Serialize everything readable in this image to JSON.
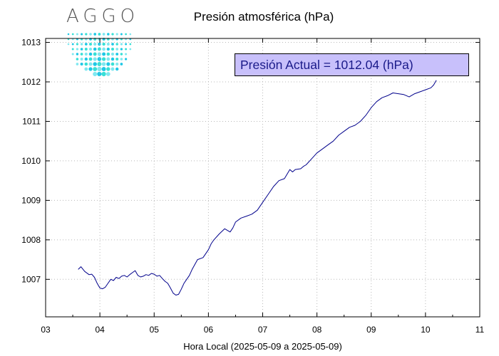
{
  "chart_data": {
    "type": "line",
    "title": "Presión atmosférica (hPa)",
    "xlabel": "Hora Local (2025-05-09 a 2025-05-09)",
    "ylabel": "",
    "xlim": [
      3,
      11
    ],
    "ylim": [
      1006.05,
      1013.1
    ],
    "x_ticks": [
      "03",
      "04",
      "05",
      "06",
      "07",
      "08",
      "09",
      "10",
      "11"
    ],
    "y_ticks": [
      "1007",
      "1008",
      "1009",
      "1010",
      "1011",
      "1012",
      "1013"
    ],
    "grid": true,
    "line_color": "#00008b",
    "x": [
      3.6,
      3.65,
      3.72,
      3.8,
      3.85,
      3.9,
      3.95,
      4.0,
      4.05,
      4.1,
      4.15,
      4.2,
      4.25,
      4.3,
      4.35,
      4.4,
      4.45,
      4.5,
      4.55,
      4.6,
      4.65,
      4.7,
      4.75,
      4.8,
      4.85,
      4.9,
      4.95,
      5.0,
      5.05,
      5.1,
      5.15,
      5.2,
      5.25,
      5.3,
      5.35,
      5.4,
      5.45,
      5.5,
      5.55,
      5.6,
      5.65,
      5.7,
      5.8,
      5.9,
      6.0,
      6.05,
      6.1,
      6.2,
      6.3,
      6.4,
      6.45,
      6.5,
      6.6,
      6.7,
      6.8,
      6.9,
      7.0,
      7.1,
      7.2,
      7.3,
      7.4,
      7.5,
      7.55,
      7.6,
      7.7,
      7.75,
      7.8,
      7.9,
      8.0,
      8.1,
      8.2,
      8.3,
      8.4,
      8.5,
      8.6,
      8.7,
      8.8,
      8.9,
      9.0,
      9.1,
      9.2,
      9.3,
      9.4,
      9.5,
      9.6,
      9.7,
      9.8,
      9.9,
      10.0,
      10.1,
      10.15,
      10.2
    ],
    "values": [
      1007.25,
      1007.32,
      1007.2,
      1007.12,
      1007.13,
      1007.05,
      1006.9,
      1006.78,
      1006.76,
      1006.8,
      1006.9,
      1007.0,
      1006.97,
      1007.05,
      1007.02,
      1007.08,
      1007.1,
      1007.06,
      1007.12,
      1007.17,
      1007.22,
      1007.1,
      1007.06,
      1007.08,
      1007.12,
      1007.1,
      1007.15,
      1007.13,
      1007.08,
      1007.1,
      1007.02,
      1006.95,
      1006.9,
      1006.78,
      1006.65,
      1006.6,
      1006.62,
      1006.75,
      1006.9,
      1007.0,
      1007.1,
      1007.25,
      1007.5,
      1007.55,
      1007.75,
      1007.9,
      1008.0,
      1008.15,
      1008.28,
      1008.2,
      1008.3,
      1008.45,
      1008.55,
      1008.6,
      1008.65,
      1008.75,
      1008.95,
      1009.15,
      1009.35,
      1009.5,
      1009.55,
      1009.78,
      1009.72,
      1009.78,
      1009.8,
      1009.86,
      1009.9,
      1010.05,
      1010.2,
      1010.3,
      1010.4,
      1010.5,
      1010.65,
      1010.75,
      1010.85,
      1010.9,
      1011.0,
      1011.15,
      1011.35,
      1011.5,
      1011.6,
      1011.65,
      1011.72,
      1011.7,
      1011.68,
      1011.62,
      1011.7,
      1011.75,
      1011.8,
      1011.85,
      1011.92,
      1012.04
    ]
  },
  "logo": {
    "text": "AGGO",
    "dot_colors": [
      "#1ec8e6",
      "#37e0d6",
      "#7fe8f0"
    ]
  },
  "annotation": {
    "label": "Presión Actual = 1012.04 (hPa)",
    "background": "#c8c0fb",
    "text_color": "#1a1a8a"
  }
}
